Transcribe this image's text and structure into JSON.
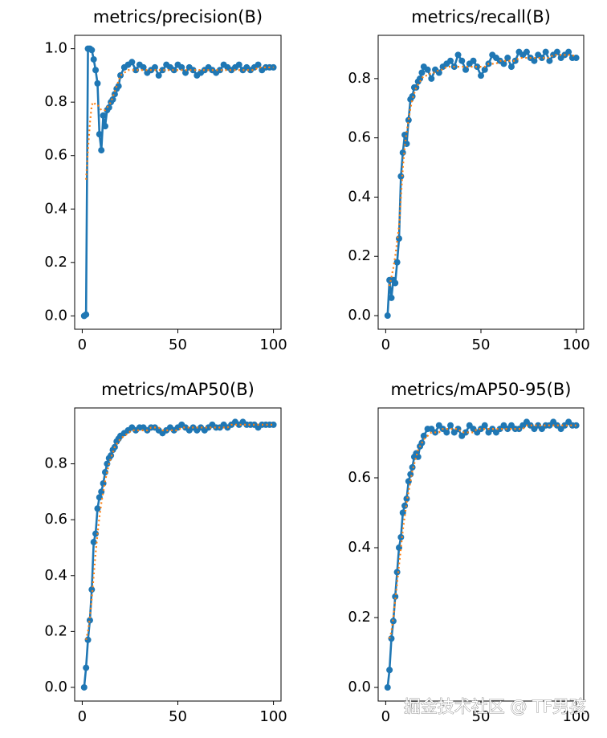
{
  "chart_data": [
    {
      "type": "line",
      "title": "metrics/precision(B)",
      "x": [
        1,
        2,
        3,
        4,
        5,
        6,
        7,
        8,
        9,
        10,
        11,
        12,
        13,
        14,
        15,
        16,
        17,
        18,
        19,
        20,
        22,
        24,
        26,
        28,
        30,
        32,
        34,
        36,
        38,
        40,
        42,
        44,
        46,
        48,
        50,
        52,
        54,
        56,
        58,
        60,
        62,
        64,
        66,
        68,
        70,
        72,
        74,
        76,
        78,
        80,
        82,
        84,
        86,
        88,
        90,
        92,
        94,
        96,
        98,
        100
      ],
      "series": [
        {
          "color": "#1f77b4",
          "style": "solid",
          "markers": true,
          "values": [
            0.0,
            0.005,
            1.0,
            1.0,
            0.995,
            0.96,
            0.92,
            0.87,
            0.68,
            0.62,
            0.75,
            0.71,
            0.77,
            0.78,
            0.8,
            0.81,
            0.83,
            0.85,
            0.86,
            0.9,
            0.93,
            0.94,
            0.95,
            0.92,
            0.94,
            0.93,
            0.91,
            0.92,
            0.93,
            0.9,
            0.92,
            0.94,
            0.93,
            0.92,
            0.94,
            0.93,
            0.91,
            0.93,
            0.92,
            0.9,
            0.91,
            0.92,
            0.93,
            0.92,
            0.91,
            0.92,
            0.94,
            0.93,
            0.92,
            0.93,
            0.94,
            0.92,
            0.93,
            0.92,
            0.93,
            0.94,
            0.92,
            0.93,
            0.93,
            0.93
          ]
        },
        {
          "color": "#ff7f0e",
          "style": "dotted",
          "markers": false,
          "values": [
            null,
            0.51,
            0.62,
            0.72,
            0.79,
            0.8,
            0.79,
            0.79,
            0.78,
            0.77,
            0.77,
            0.77,
            0.78,
            0.79,
            0.8,
            0.82,
            0.84,
            0.86,
            0.88,
            0.9,
            0.91,
            0.92,
            0.92,
            0.92,
            0.92,
            0.92,
            0.92,
            0.92,
            0.92,
            0.92,
            0.92,
            0.92,
            0.92,
            0.92,
            0.92,
            0.92,
            0.92,
            0.92,
            0.92,
            0.92,
            0.92,
            0.92,
            0.92,
            0.92,
            0.92,
            0.92,
            0.92,
            0.92,
            0.92,
            0.92,
            0.92,
            0.92,
            0.92,
            0.92,
            0.92,
            0.93,
            0.93,
            0.93,
            0.93,
            0.93
          ]
        }
      ],
      "xlim": [
        -3.95,
        103.95
      ],
      "xticks": [
        0,
        50,
        100
      ],
      "ylim": [
        -0.05,
        1.05
      ],
      "yticks": [
        {
          "value": 0,
          "label": "0.0"
        },
        0.2,
        0.4,
        0.6,
        0.8,
        {
          "value": 1,
          "label": "1.0"
        }
      ]
    },
    {
      "type": "line",
      "title": "metrics/recall(B)",
      "x": [
        1,
        2,
        3,
        4,
        5,
        6,
        7,
        8,
        9,
        10,
        11,
        12,
        13,
        14,
        15,
        16,
        17,
        18,
        19,
        20,
        22,
        24,
        26,
        28,
        30,
        32,
        34,
        36,
        38,
        40,
        42,
        44,
        46,
        48,
        50,
        52,
        54,
        56,
        58,
        60,
        62,
        64,
        66,
        68,
        70,
        72,
        74,
        76,
        78,
        80,
        82,
        84,
        86,
        88,
        90,
        92,
        94,
        96,
        98,
        100
      ],
      "series": [
        {
          "color": "#1f77b4",
          "style": "solid",
          "markers": true,
          "values": [
            0.0,
            0.12,
            0.06,
            0.12,
            0.11,
            0.18,
            0.26,
            0.47,
            0.55,
            0.61,
            0.58,
            0.66,
            0.73,
            0.74,
            0.77,
            0.77,
            0.79,
            0.8,
            0.82,
            0.84,
            0.83,
            0.8,
            0.83,
            0.82,
            0.84,
            0.85,
            0.86,
            0.84,
            0.88,
            0.86,
            0.83,
            0.85,
            0.86,
            0.84,
            0.81,
            0.83,
            0.85,
            0.88,
            0.87,
            0.86,
            0.85,
            0.87,
            0.84,
            0.86,
            0.89,
            0.88,
            0.89,
            0.87,
            0.86,
            0.88,
            0.87,
            0.89,
            0.86,
            0.88,
            0.89,
            0.87,
            0.88,
            0.89,
            0.87,
            0.87
          ]
        },
        {
          "color": "#ff7f0e",
          "style": "dotted",
          "markers": false,
          "values": [
            null,
            0.1,
            0.13,
            0.16,
            0.2,
            0.25,
            0.3,
            0.4,
            0.5,
            0.57,
            0.62,
            0.66,
            0.7,
            0.73,
            0.75,
            0.77,
            0.78,
            0.79,
            0.8,
            0.81,
            0.81,
            0.82,
            0.82,
            0.83,
            0.83,
            0.84,
            0.84,
            0.84,
            0.84,
            0.84,
            0.84,
            0.84,
            0.84,
            0.84,
            0.84,
            0.84,
            0.85,
            0.85,
            0.85,
            0.86,
            0.86,
            0.86,
            0.86,
            0.86,
            0.87,
            0.87,
            0.87,
            0.87,
            0.87,
            0.87,
            0.87,
            0.87,
            0.87,
            0.88,
            0.88,
            0.88,
            0.88,
            0.88,
            0.88,
            0.87
          ]
        }
      ],
      "xlim": [
        -3.95,
        103.95
      ],
      "xticks": [
        0,
        50,
        100
      ],
      "ylim": [
        -0.046,
        0.946
      ],
      "yticks": [
        {
          "value": 0,
          "label": "0.0"
        },
        0.2,
        0.4,
        0.6,
        0.8
      ]
    },
    {
      "type": "line",
      "title": "metrics/mAP50(B)",
      "x": [
        1,
        2,
        3,
        4,
        5,
        6,
        7,
        8,
        9,
        10,
        11,
        12,
        13,
        14,
        15,
        16,
        17,
        18,
        19,
        20,
        22,
        24,
        26,
        28,
        30,
        32,
        34,
        36,
        38,
        40,
        42,
        44,
        46,
        48,
        50,
        52,
        54,
        56,
        58,
        60,
        62,
        64,
        66,
        68,
        70,
        72,
        74,
        76,
        78,
        80,
        82,
        84,
        86,
        88,
        90,
        92,
        94,
        96,
        98,
        100
      ],
      "series": [
        {
          "color": "#1f77b4",
          "style": "solid",
          "markers": true,
          "values": [
            0.0,
            0.07,
            0.17,
            0.24,
            0.35,
            0.52,
            0.55,
            0.64,
            0.68,
            0.7,
            0.73,
            0.77,
            0.8,
            0.82,
            0.83,
            0.85,
            0.86,
            0.88,
            0.89,
            0.9,
            0.91,
            0.92,
            0.93,
            0.92,
            0.93,
            0.93,
            0.92,
            0.93,
            0.93,
            0.92,
            0.91,
            0.92,
            0.93,
            0.92,
            0.93,
            0.94,
            0.93,
            0.92,
            0.93,
            0.92,
            0.93,
            0.92,
            0.93,
            0.94,
            0.93,
            0.93,
            0.94,
            0.93,
            0.94,
            0.95,
            0.94,
            0.95,
            0.94,
            0.94,
            0.94,
            0.93,
            0.94,
            0.94,
            0.94,
            0.94
          ]
        },
        {
          "color": "#ff7f0e",
          "style": "dotted",
          "markers": false,
          "values": [
            null,
            0.17,
            0.2,
            0.25,
            0.32,
            0.4,
            0.48,
            0.55,
            0.61,
            0.66,
            0.7,
            0.74,
            0.77,
            0.8,
            0.82,
            0.84,
            0.86,
            0.87,
            0.88,
            0.89,
            0.9,
            0.91,
            0.92,
            0.92,
            0.92,
            0.92,
            0.92,
            0.93,
            0.93,
            0.93,
            0.92,
            0.92,
            0.92,
            0.92,
            0.92,
            0.93,
            0.93,
            0.93,
            0.93,
            0.93,
            0.93,
            0.93,
            0.93,
            0.93,
            0.93,
            0.93,
            0.93,
            0.93,
            0.94,
            0.94,
            0.94,
            0.94,
            0.94,
            0.94,
            0.94,
            0.94,
            0.94,
            0.94,
            0.94,
            0.94
          ]
        }
      ],
      "xlim": [
        -3.95,
        103.95
      ],
      "xticks": [
        0,
        50,
        100
      ],
      "ylim": [
        -0.049,
        1.0
      ],
      "yticks": [
        {
          "value": 0,
          "label": "0.0"
        },
        0.2,
        0.4,
        0.6,
        0.8
      ]
    },
    {
      "type": "line",
      "title": "metrics/mAP50-95(B)",
      "x": [
        1,
        2,
        3,
        4,
        5,
        6,
        7,
        8,
        9,
        10,
        11,
        12,
        13,
        14,
        15,
        16,
        17,
        18,
        19,
        20,
        22,
        24,
        26,
        28,
        30,
        32,
        34,
        36,
        38,
        40,
        42,
        44,
        46,
        48,
        50,
        52,
        54,
        56,
        58,
        60,
        62,
        64,
        66,
        68,
        70,
        72,
        74,
        76,
        78,
        80,
        82,
        84,
        86,
        88,
        90,
        92,
        94,
        96,
        98,
        100
      ],
      "series": [
        {
          "color": "#1f77b4",
          "style": "solid",
          "markers": true,
          "values": [
            0.0,
            0.05,
            0.14,
            0.19,
            0.26,
            0.33,
            0.4,
            0.43,
            0.5,
            0.52,
            0.54,
            0.59,
            0.61,
            0.63,
            0.66,
            0.67,
            0.66,
            0.69,
            0.7,
            0.72,
            0.74,
            0.74,
            0.73,
            0.75,
            0.74,
            0.73,
            0.75,
            0.73,
            0.74,
            0.72,
            0.73,
            0.75,
            0.74,
            0.73,
            0.74,
            0.75,
            0.73,
            0.74,
            0.73,
            0.74,
            0.75,
            0.74,
            0.75,
            0.74,
            0.74,
            0.75,
            0.76,
            0.75,
            0.74,
            0.75,
            0.74,
            0.75,
            0.75,
            0.76,
            0.75,
            0.74,
            0.75,
            0.76,
            0.75,
            0.75
          ]
        },
        {
          "color": "#ff7f0e",
          "style": "dotted",
          "markers": false,
          "values": [
            null,
            0.14,
            0.16,
            0.2,
            0.25,
            0.3,
            0.35,
            0.4,
            0.45,
            0.49,
            0.53,
            0.56,
            0.59,
            0.62,
            0.64,
            0.66,
            0.68,
            0.69,
            0.7,
            0.71,
            0.72,
            0.73,
            0.73,
            0.73,
            0.74,
            0.74,
            0.74,
            0.74,
            0.74,
            0.73,
            0.73,
            0.73,
            0.73,
            0.74,
            0.74,
            0.74,
            0.74,
            0.74,
            0.74,
            0.74,
            0.74,
            0.74,
            0.74,
            0.74,
            0.74,
            0.74,
            0.75,
            0.75,
            0.75,
            0.75,
            0.75,
            0.75,
            0.75,
            0.75,
            0.75,
            0.75,
            0.75,
            0.75,
            0.75,
            0.75
          ]
        }
      ],
      "xlim": [
        -3.95,
        103.95
      ],
      "xticks": [
        0,
        50,
        100
      ],
      "ylim": [
        -0.039,
        0.8
      ],
      "yticks": [
        {
          "value": 0,
          "label": "0.0"
        },
        0.2,
        0.4,
        0.6
      ]
    }
  ],
  "watermark": "掘金技术社区 @ TF男孩"
}
